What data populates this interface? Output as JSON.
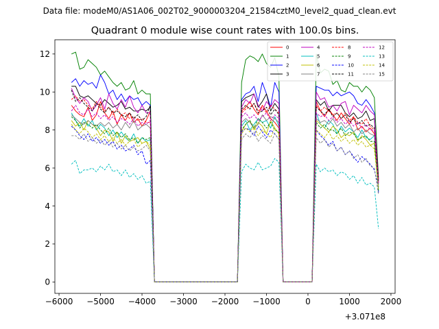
{
  "suptitle": "Data file: modeM0/AS1A06_002T02_9000003204_21584cztM0_level2_quad_clean.evt",
  "chart_data": {
    "type": "line",
    "title": "Quadrant 0 module wise count rates with 100.0s bins.",
    "xlabel": "",
    "ylabel": "",
    "x_offset_label": "+3.071e8",
    "xlim": [
      -6100,
      2100
    ],
    "ylim": [
      -0.6,
      12.75
    ],
    "xticks": [
      -6000,
      -5000,
      -4000,
      -3000,
      -2000,
      -1000,
      0,
      1000,
      2000
    ],
    "xtick_labels": [
      "−6000",
      "−5000",
      "−4000",
      "−3000",
      "−2000",
      "−1000",
      "0",
      "1000",
      "2000"
    ],
    "yticks": [
      0,
      2,
      4,
      6,
      8,
      10,
      12
    ],
    "ytick_labels": [
      "0",
      "2",
      "4",
      "6",
      "8",
      "10",
      "12"
    ],
    "legend_position": "upper right",
    "legend_columns": 4,
    "segments": [
      {
        "start": -5700,
        "end": -3800,
        "step": 100,
        "drop_to": -3700
      },
      {
        "start": -1600,
        "end": -700,
        "step": 100,
        "rise_from": -1700,
        "drop_to": -600
      },
      {
        "start": 200,
        "end": 1700,
        "step": 100,
        "rise_from": 100
      }
    ],
    "series": [
      {
        "name": "0",
        "color": "#ff0000",
        "dash": "solid",
        "s1": [
          9.3,
          9.0,
          8.8,
          8.7,
          9.2,
          8.5,
          8.8,
          9.5,
          8.9,
          8.6,
          9.0,
          8.3,
          8.8,
          8.5,
          8.9,
          8.4,
          8.6,
          8.2,
          8.5,
          9.0
        ],
        "s2": [
          9.0,
          9.2,
          9.5,
          9.1,
          8.8,
          9.3,
          9.0,
          8.6,
          8.4,
          8.1
        ],
        "s3": [
          9.5,
          9.0,
          8.7,
          9.1,
          8.8,
          8.5,
          8.9,
          8.6,
          8.3,
          8.7,
          8.0,
          8.2,
          7.9,
          8.1,
          7.8,
          5.3
        ]
      },
      {
        "name": "1",
        "color": "#008000",
        "dash": "solid",
        "s1": [
          12.0,
          12.1,
          11.2,
          11.3,
          11.7,
          11.5,
          11.3,
          10.9,
          11.1,
          10.8,
          10.5,
          10.3,
          10.5,
          10.1,
          10.2,
          10.6,
          9.9,
          10.1,
          9.9,
          9.9
        ],
        "s2": [
          10.5,
          11.7,
          11.9,
          11.8,
          11.6,
          12.0,
          11.5,
          11.3,
          11.8,
          10.8
        ],
        "s3": [
          12.0,
          11.0,
          11.2,
          11.1,
          10.4,
          10.6,
          10.1,
          10.0,
          10.5,
          10.3,
          10.3,
          10.0,
          10.3,
          10.1,
          9.7,
          5.5
        ]
      },
      {
        "name": "2",
        "color": "#0000ff",
        "dash": "solid",
        "s1": [
          10.5,
          10.7,
          10.3,
          10.6,
          10.4,
          10.5,
          10.2,
          10.9,
          10.5,
          9.9,
          10.1,
          9.6,
          9.9,
          9.5,
          9.8,
          9.6,
          9.7,
          9.3,
          9.5,
          9.3
        ],
        "s2": [
          9.6,
          9.9,
          10.0,
          10.3,
          9.5,
          10.5,
          9.9,
          9.2,
          10.5,
          10.0
        ],
        "s3": [
          10.3,
          10.2,
          10.1,
          10.1,
          9.8,
          10.0,
          9.8,
          9.9,
          10.0,
          9.8,
          9.4,
          9.3,
          9.6,
          9.3,
          8.9,
          4.7
        ]
      },
      {
        "name": "3",
        "color": "#000000",
        "dash": "solid",
        "s1": [
          10.3,
          10.3,
          9.8,
          9.7,
          9.8,
          9.6,
          9.4,
          9.3,
          9.6,
          9.4,
          9.2,
          9.3,
          9.5,
          9.1,
          9.2,
          9.0,
          9.0,
          9.1,
          9.0,
          9.2
        ],
        "s2": [
          9.5,
          9.7,
          9.8,
          9.9,
          9.2,
          9.5,
          9.9,
          9.0,
          9.4,
          9.1
        ],
        "s3": [
          9.6,
          9.3,
          9.5,
          9.0,
          9.3,
          9.3,
          9.3,
          8.9,
          8.7,
          8.9,
          8.6,
          8.7,
          9.0,
          8.5,
          8.6,
          5.4
        ]
      },
      {
        "name": "4",
        "color": "#bf00bf",
        "dash": "solid",
        "s1": [
          10.2,
          9.7,
          9.4,
          9.7,
          9.5,
          9.0,
          9.3,
          9.7,
          9.1,
          9.9,
          9.4,
          9.1,
          9.6,
          9.2,
          9.8,
          9.2,
          8.9,
          9.3,
          8.9,
          8.9
        ],
        "s2": [
          9.2,
          9.6,
          9.4,
          9.9,
          9.3,
          9.0,
          9.5,
          9.2,
          9.6,
          9.4
        ],
        "s3": [
          10.0,
          9.6,
          9.7,
          9.2,
          9.3,
          9.0,
          9.4,
          9.5,
          8.8,
          9.3,
          9.1,
          8.9,
          9.3,
          9.0,
          8.8,
          5.2
        ]
      },
      {
        "name": "5",
        "color": "#00bfbf",
        "dash": "solid",
        "s1": [
          8.9,
          8.5,
          8.2,
          8.6,
          8.2,
          8.5,
          8.0,
          8.3,
          8.1,
          7.7,
          8.0,
          7.6,
          7.9,
          7.6,
          7.4,
          7.8,
          7.3,
          7.6,
          7.4,
          7.5
        ],
        "s2": [
          8.2,
          8.5,
          8.0,
          8.3,
          8.6,
          8.4,
          8.5,
          8.1,
          8.7,
          8.2
        ],
        "s3": [
          8.9,
          8.3,
          8.1,
          8.5,
          8.3,
          7.8,
          8.2,
          7.9,
          8.1,
          7.9,
          7.6,
          8.0,
          7.6,
          7.5,
          7.7,
          5.0
        ]
      },
      {
        "name": "6",
        "color": "#bfbf00",
        "dash": "solid",
        "s1": [
          8.5,
          8.2,
          8.4,
          8.0,
          8.5,
          8.3,
          8.1,
          7.7,
          8.0,
          7.9,
          7.4,
          7.9,
          7.3,
          7.7,
          7.4,
          7.5,
          7.6,
          7.3,
          7.4,
          7.0
        ],
        "s2": [
          7.9,
          8.3,
          8.5,
          8.0,
          8.4,
          8.2,
          7.8,
          8.5,
          8.1,
          7.8
        ],
        "s3": [
          8.5,
          8.3,
          8.1,
          7.9,
          8.2,
          8.0,
          7.6,
          7.8,
          7.7,
          7.9,
          7.4,
          7.7,
          7.5,
          7.2,
          7.3,
          4.9
        ]
      },
      {
        "name": "7",
        "color": "#808080",
        "dash": "solid",
        "s1": [
          8.8,
          8.6,
          8.4,
          8.3,
          8.5,
          8.3,
          8.2,
          8.4,
          8.2,
          8.4,
          8.1,
          8.3,
          8.0,
          8.4,
          8.1,
          8.5,
          8.0,
          8.2,
          8.3,
          8.1
        ],
        "s2": [
          8.4,
          8.6,
          8.4,
          8.1,
          8.3,
          8.8,
          8.5,
          8.7,
          8.6,
          8.4
        ],
        "s3": [
          8.6,
          8.4,
          8.5,
          8.3,
          8.6,
          8.2,
          8.4,
          8.1,
          8.3,
          7.9,
          8.1,
          7.8,
          8.0,
          7.8,
          7.7,
          5.1
        ]
      },
      {
        "name": "8",
        "color": "#ff0000",
        "dash": "dashed",
        "s1": [
          9.6,
          9.8,
          9.5,
          9.6,
          9.3,
          9.1,
          9.5,
          9.2,
          9.0,
          9.2,
          8.8,
          9.1,
          8.8,
          8.9,
          8.6,
          8.7,
          8.5,
          8.6,
          8.4,
          8.4
        ],
        "s2": [
          8.9,
          9.1,
          9.2,
          9.4,
          9.0,
          9.2,
          8.9,
          9.3,
          9.1,
          8.9
        ],
        "s3": [
          9.3,
          9.0,
          9.2,
          9.0,
          8.8,
          8.9,
          8.6,
          8.9,
          8.5,
          8.7,
          8.4,
          8.3,
          8.6,
          8.2,
          8.0,
          5.4
        ]
      },
      {
        "name": "9",
        "color": "#008000",
        "dash": "dashed",
        "s1": [
          8.7,
          8.5,
          8.1,
          8.4,
          8.3,
          8.1,
          8.3,
          8.0,
          7.8,
          8.1,
          7.7,
          7.9,
          7.6,
          7.8,
          7.5,
          7.6,
          7.3,
          7.6,
          7.5,
          7.6
        ],
        "s2": [
          8.0,
          8.3,
          8.5,
          8.1,
          8.6,
          8.4,
          8.1,
          8.4,
          8.0,
          7.9
        ],
        "s3": [
          8.4,
          8.1,
          8.3,
          8.0,
          8.0,
          7.8,
          8.1,
          7.7,
          7.9,
          7.8,
          7.5,
          7.6,
          7.7,
          7.4,
          7.4,
          4.8
        ]
      },
      {
        "name": "10",
        "color": "#0000ff",
        "dash": "dashed",
        "s1": [
          8.2,
          8.0,
          7.7,
          7.5,
          7.8,
          7.4,
          7.6,
          7.3,
          7.5,
          7.2,
          7.4,
          7.0,
          7.2,
          6.9,
          7.0,
          7.2,
          6.7,
          6.9,
          6.2,
          6.4
        ],
        "s2": [
          7.9,
          8.1,
          8.0,
          7.7,
          8.2,
          7.9,
          7.6,
          8.0,
          7.8,
          7.5
        ],
        "s3": [
          8.0,
          7.7,
          7.5,
          7.2,
          7.4,
          6.9,
          7.1,
          6.7,
          6.9,
          6.6,
          6.3,
          6.6,
          6.4,
          6.2,
          5.9,
          5.0
        ]
      },
      {
        "name": "11",
        "color": "#000000",
        "dash": "dashed",
        "s1": [
          10.1,
          9.5,
          9.7,
          9.4,
          9.2,
          9.0,
          9.4,
          9.1,
          8.9,
          9.2,
          8.9,
          9.0,
          8.8,
          8.7,
          8.9,
          8.6,
          8.8,
          8.5,
          8.7,
          9.3
        ],
        "s2": [
          9.1,
          9.3,
          9.1,
          9.4,
          8.9,
          9.0,
          9.2,
          8.8,
          9.1,
          8.8
        ],
        "s3": [
          9.2,
          9.0,
          8.8,
          9.1,
          8.7,
          8.9,
          8.6,
          8.8,
          8.4,
          8.6,
          8.3,
          8.5,
          8.2,
          8.3,
          8.1,
          5.3
        ]
      },
      {
        "name": "12",
        "color": "#bf00bf",
        "dash": "dashed",
        "s1": [
          9.0,
          9.3,
          8.9,
          8.8,
          9.1,
          8.7,
          8.9,
          8.6,
          8.8,
          8.5,
          8.7,
          8.4,
          8.6,
          8.5,
          8.3,
          8.6,
          8.2,
          8.4,
          8.3,
          8.5
        ],
        "s2": [
          8.7,
          8.9,
          8.6,
          8.8,
          8.5,
          8.7,
          8.9,
          8.5,
          8.8,
          8.6
        ],
        "s3": [
          8.9,
          8.7,
          8.8,
          8.5,
          8.7,
          8.4,
          8.6,
          8.3,
          8.5,
          8.2,
          8.4,
          8.1,
          8.3,
          8.0,
          8.0,
          5.2
        ]
      },
      {
        "name": "13",
        "color": "#00bfbf",
        "dash": "dashed",
        "s1": [
          6.2,
          6.4,
          5.7,
          5.9,
          5.9,
          6.0,
          5.8,
          6.1,
          5.9,
          6.2,
          5.8,
          5.9,
          5.6,
          5.9,
          5.5,
          5.7,
          5.4,
          5.6,
          5.2,
          5.3
        ],
        "s2": [
          5.8,
          6.2,
          6.0,
          5.9,
          6.3,
          5.9,
          6.0,
          6.1,
          6.5,
          6.3
        ],
        "s3": [
          6.2,
          5.8,
          6.0,
          5.8,
          5.9,
          5.6,
          5.8,
          5.7,
          5.4,
          5.6,
          5.2,
          5.5,
          5.1,
          5.2,
          5.0,
          2.8
        ]
      },
      {
        "name": "14",
        "color": "#bfbf00",
        "dash": "dashed",
        "s1": [
          8.3,
          8.0,
          7.8,
          8.1,
          7.9,
          7.6,
          7.8,
          7.5,
          7.7,
          7.4,
          7.6,
          7.3,
          7.5,
          7.2,
          7.4,
          7.5,
          7.1,
          7.3,
          7.4,
          7.2
        ],
        "s2": [
          7.8,
          8.1,
          7.9,
          8.2,
          7.7,
          8.0,
          7.8,
          7.6,
          8.1,
          7.8
        ],
        "s3": [
          8.0,
          7.8,
          7.6,
          7.9,
          7.5,
          7.7,
          7.4,
          7.6,
          7.3,
          7.5,
          7.2,
          7.4,
          7.1,
          7.2,
          7.0,
          4.9
        ]
      },
      {
        "name": "15",
        "color": "#808080",
        "dash": "dashed",
        "s1": [
          7.7,
          7.7,
          7.5,
          7.8,
          7.4,
          7.6,
          7.3,
          7.5,
          7.2,
          7.4,
          7.1,
          7.3,
          7.0,
          7.2,
          6.9,
          7.1,
          6.9,
          7.0,
          7.2,
          6.9
        ],
        "s2": [
          7.5,
          7.8,
          7.6,
          7.9,
          7.4,
          7.7,
          7.5,
          7.3,
          7.8,
          7.5
        ],
        "s3": [
          7.6,
          7.3,
          7.5,
          7.1,
          7.3,
          6.9,
          7.1,
          6.7,
          6.9,
          6.5,
          6.7,
          6.3,
          6.5,
          6.1,
          6.0,
          4.6
        ]
      }
    ]
  }
}
